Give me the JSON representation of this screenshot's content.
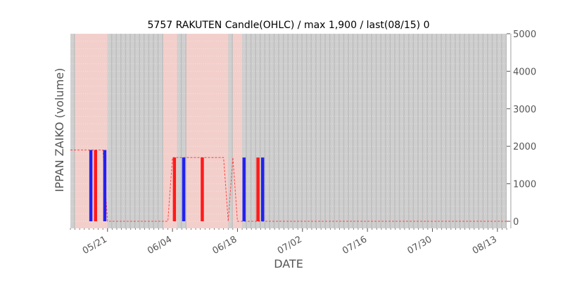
{
  "chart_data": {
    "type": "bar",
    "title": "5757 RAKUTEN Candle(OHLC) / max 1,900 / last(08/15) 0",
    "xlabel": "DATE",
    "ylabel": "IPPAN ZAIKO (volume)",
    "ylim": [
      0,
      5000
    ],
    "yticks": [
      0,
      1000,
      2000,
      3000,
      4000,
      5000
    ],
    "y_axis_side": "right",
    "xlim": [
      "2024-05-13",
      "2024-08-15"
    ],
    "xticks": [
      {
        "date": "2024-05-21",
        "label": "05/21"
      },
      {
        "date": "2024-06-04",
        "label": "06/04"
      },
      {
        "date": "2024-06-18",
        "label": "06/18"
      },
      {
        "date": "2024-07-02",
        "label": "07/02"
      },
      {
        "date": "2024-07-16",
        "label": "07/16"
      },
      {
        "date": "2024-07-30",
        "label": "07/30"
      },
      {
        "date": "2024-08-13",
        "label": "08/13"
      }
    ],
    "grid": true,
    "background_colors": {
      "plot": "#cfcfcf",
      "stripe": "#bdbdbd",
      "highlight": "#f3cfcb"
    },
    "highlight_ranges": [
      [
        "2024-05-14",
        "2024-05-20"
      ],
      [
        "2024-06-02",
        "2024-06-04"
      ],
      [
        "2024-06-07",
        "2024-06-15"
      ],
      [
        "2024-06-17",
        "2024-06-18"
      ]
    ],
    "level_line": {
      "color": "#ff4444",
      "points": [
        [
          "2024-05-13",
          1900
        ],
        [
          "2024-05-20",
          1900
        ],
        [
          "2024-05-21",
          0
        ],
        [
          "2024-06-03",
          0
        ],
        [
          "2024-06-04",
          1700
        ],
        [
          "2024-06-06",
          1700
        ],
        [
          "2024-06-07",
          1700
        ],
        [
          "2024-06-15",
          1700
        ],
        [
          "2024-06-16",
          0
        ],
        [
          "2024-06-17",
          1700
        ],
        [
          "2024-06-18",
          0
        ],
        [
          "2024-08-15",
          0
        ]
      ]
    },
    "bars": [
      {
        "date": "2024-05-17",
        "value": 1900,
        "color": "#2222ee"
      },
      {
        "date": "2024-05-18",
        "value": 1900,
        "color": "#ff1a1a"
      },
      {
        "date": "2024-05-20",
        "value": 1900,
        "color": "#2222ee"
      },
      {
        "date": "2024-06-04",
        "value": 1700,
        "color": "#ff1a1a"
      },
      {
        "date": "2024-06-06",
        "value": 1700,
        "color": "#2222ee"
      },
      {
        "date": "2024-06-10",
        "value": 1700,
        "color": "#ff1a1a"
      },
      {
        "date": "2024-06-19",
        "value": 1700,
        "color": "#2222ee"
      },
      {
        "date": "2024-06-22",
        "value": 1700,
        "color": "#ff1a1a"
      },
      {
        "date": "2024-06-23",
        "value": 1700,
        "color": "#2222ee"
      }
    ]
  }
}
